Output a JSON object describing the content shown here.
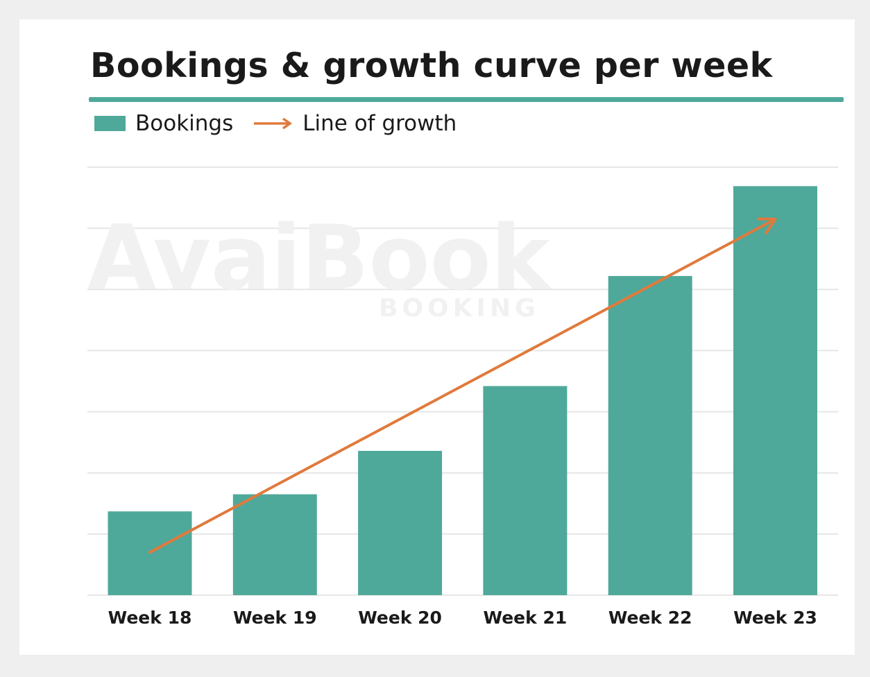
{
  "colors": {
    "bar": "#4fa99a",
    "growth_line": "#e07a3c",
    "grid": "#e6e6e6",
    "watermark": "#f1f1f1"
  },
  "watermark": {
    "brand": "AvaiBook",
    "sub": "BOOKING"
  },
  "chart_data": {
    "type": "bar",
    "title": "Bookings & growth curve per week",
    "xlabel": "",
    "ylabel": "",
    "categories": [
      "Week 18",
      "Week 19",
      "Week 20",
      "Week 21",
      "Week 22",
      "Week 23"
    ],
    "series": [
      {
        "name": "Bookings",
        "type": "bar",
        "values": [
          1.37,
          1.65,
          2.36,
          3.42,
          5.22,
          6.69
        ]
      },
      {
        "name": "Line of growth",
        "type": "arrow",
        "values": [
          0.7,
          null,
          null,
          null,
          null,
          6.15
        ]
      }
    ],
    "ylim": [
      0,
      7
    ],
    "y_ticks": [
      0,
      1,
      2,
      3,
      4,
      5,
      6,
      7
    ],
    "show_y_tick_labels": false,
    "grid": true,
    "legend": {
      "position": "top-left",
      "entries": [
        "Bookings",
        "Line of growth"
      ]
    }
  }
}
